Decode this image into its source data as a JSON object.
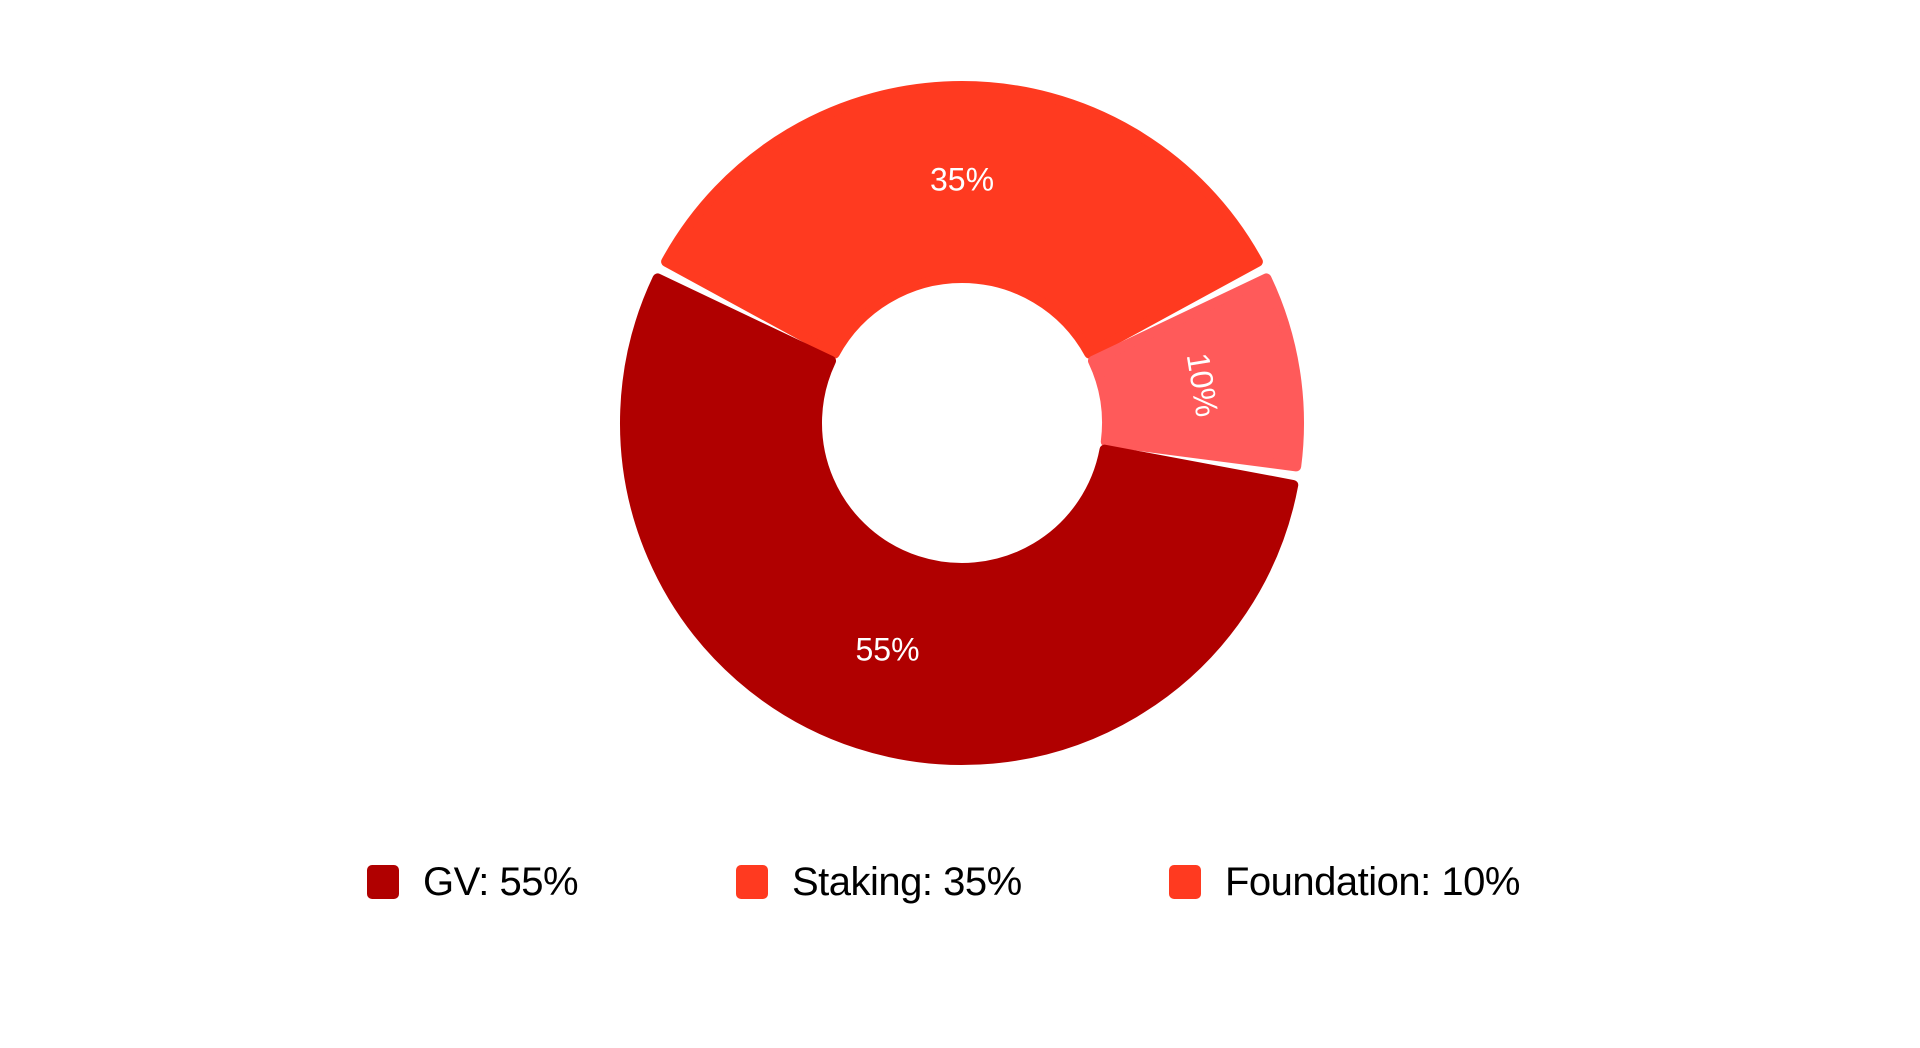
{
  "chart_data": {
    "type": "pie",
    "variant": "donut",
    "slices": [
      {
        "name": "Staking",
        "value": 35,
        "label": "35%",
        "color": "#ff3a20"
      },
      {
        "name": "Foundation",
        "value": 10,
        "label": "10%",
        "color": "#ff5a5a"
      },
      {
        "name": "GV",
        "value": 55,
        "label": "55%",
        "color": "#b00000"
      }
    ],
    "legend": {
      "placement": "bottom",
      "items": [
        {
          "label": "GV: 55%",
          "color": "#b00000"
        },
        {
          "label": "Staking: 35%",
          "color": "#ff3a20"
        },
        {
          "label": "Foundation: 10%",
          "color": "#ff3a20"
        }
      ]
    }
  }
}
